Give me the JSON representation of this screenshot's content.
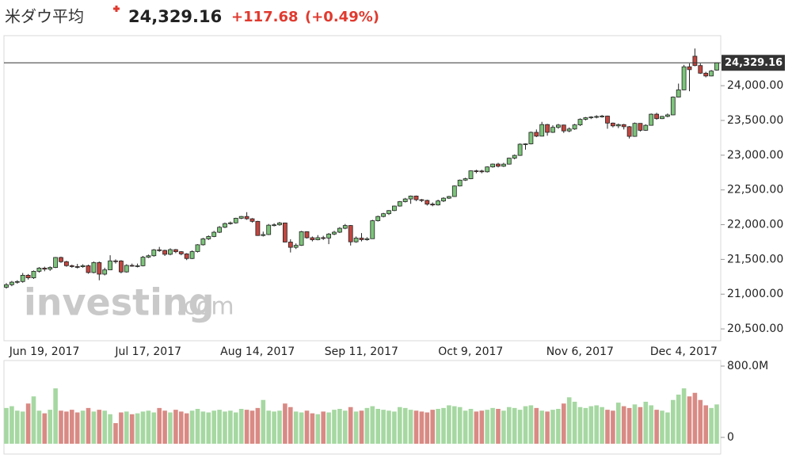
{
  "header": {
    "title": "米ダウ平均",
    "price": "24,329.16",
    "change": "+117.68",
    "change_pct": "(+0.49%)"
  },
  "chart_data": [
    {
      "type": "candlestick",
      "categories": [
        null,
        null,
        null,
        null,
        null,
        null,
        null,
        null,
        null,
        "Jun 19, 2017",
        null,
        null,
        null,
        null,
        null,
        null,
        null,
        null,
        null,
        null,
        null,
        null,
        null,
        null,
        null,
        null,
        null,
        null,
        "Jul 17, 2017",
        null,
        null,
        null,
        null,
        null,
        null,
        null,
        null,
        null,
        null,
        null,
        null,
        null,
        null,
        null,
        null,
        null,
        null,
        null,
        "Aug 14, 2017",
        null,
        null,
        null,
        null,
        null,
        null,
        null,
        null,
        null,
        null,
        null,
        null,
        null,
        null,
        null,
        null,
        null,
        null,
        "Sep 11, 2017",
        null,
        null,
        null,
        null,
        null,
        null,
        null,
        null,
        null,
        null,
        null,
        null,
        null,
        null,
        null,
        null,
        null,
        null,
        null,
        "Oct 9, 2017",
        null,
        null,
        null,
        null,
        null,
        null,
        null,
        null,
        null,
        null,
        null,
        null,
        null,
        null,
        null,
        null,
        null,
        null,
        null,
        "Nov 6, 2017",
        null,
        null,
        null,
        null,
        null,
        null,
        null,
        null,
        null,
        null,
        null,
        null,
        null,
        null,
        null,
        null,
        null,
        null,
        "Dec 4, 2017",
        null,
        null,
        null,
        null
      ],
      "open": [
        21100,
        21136,
        21173,
        21182,
        21272,
        21235,
        21329,
        21375,
        21360,
        21384,
        21528,
        21467,
        21410,
        21397,
        21395,
        21410,
        21311,
        21455,
        21288,
        21350,
        21479,
        21478,
        21320,
        21414,
        21409,
        21409,
        21532,
        21553,
        21638,
        21630,
        21574,
        21641,
        21611,
        21580,
        21513,
        21613,
        21711,
        21796,
        21830,
        21891,
        21963,
        22016,
        22026,
        22092,
        22118,
        22085,
        22048,
        21844,
        21858,
        21993,
        21998,
        22025,
        21750,
        21674,
        21703,
        21899,
        21812,
        21783,
        21813,
        21808,
        21865,
        21892,
        21948,
        21988,
        21753,
        21807,
        21784,
        21798,
        22057,
        22118,
        22158,
        22203,
        22268,
        22331,
        22370,
        22412,
        22359,
        22349,
        22296,
        22284,
        22341,
        22381,
        22405,
        22557,
        22641,
        22661,
        22775,
        22773,
        22761,
        22831,
        22872,
        22841,
        22871,
        22957,
        22997,
        23158,
        23163,
        23329,
        23274,
        23441,
        23329,
        23401,
        23434,
        23349,
        23377,
        23436,
        23516,
        23539,
        23549,
        23557,
        23563,
        23462,
        23422,
        23440,
        23410,
        23271,
        23458,
        23358,
        23430,
        23590,
        23526,
        23558,
        23580,
        23836,
        23940,
        24272,
        24424,
        24290,
        24180,
        24140,
        24224
      ],
      "high": [
        21160,
        21190,
        21200,
        21305,
        21290,
        21340,
        21390,
        21395,
        21400,
        21535,
        21540,
        21480,
        21425,
        21435,
        21430,
        21425,
        21470,
        21470,
        21380,
        21560,
        21500,
        21490,
        21430,
        21440,
        21440,
        21550,
        21570,
        21650,
        21680,
        21640,
        21660,
        21650,
        21620,
        21590,
        21630,
        21720,
        21810,
        21845,
        21910,
        21980,
        22030,
        22045,
        22100,
        22125,
        22180,
        22095,
        22055,
        21900,
        22010,
        22020,
        22040,
        22030,
        21790,
        21730,
        21910,
        21905,
        21830,
        21850,
        21840,
        21880,
        21910,
        21965,
        22010,
        21995,
        21830,
        21880,
        21820,
        22070,
        22130,
        22170,
        22210,
        22275,
        22340,
        22385,
        22420,
        22420,
        22370,
        22360,
        22320,
        22360,
        22395,
        22415,
        22565,
        22650,
        22675,
        22780,
        22790,
        22790,
        22840,
        22880,
        22890,
        22890,
        22965,
        23010,
        23170,
        23170,
        23340,
        23370,
        23480,
        23450,
        23430,
        23450,
        23440,
        23400,
        23450,
        23530,
        23550,
        23560,
        23575,
        23580,
        23570,
        23470,
        23455,
        23450,
        23420,
        23470,
        23460,
        23445,
        23600,
        23610,
        23565,
        23600,
        23845,
        24030,
        24300,
        24320,
        24535,
        24320,
        24200,
        24225,
        24330
      ],
      "low": [
        21080,
        21115,
        21150,
        21165,
        21210,
        21220,
        21310,
        21330,
        21335,
        21375,
        21450,
        21395,
        21380,
        21370,
        21380,
        21295,
        21300,
        21200,
        21270,
        21345,
        21440,
        21300,
        21310,
        21395,
        21385,
        21400,
        21520,
        21540,
        21610,
        21550,
        21560,
        21590,
        21560,
        21490,
        21505,
        21600,
        21700,
        21780,
        21820,
        21880,
        21950,
        22000,
        22015,
        22080,
        22070,
        22030,
        21840,
        21830,
        21850,
        21975,
        21985,
        21745,
        21600,
        21650,
        21695,
        21800,
        21760,
        21775,
        21780,
        21720,
        21850,
        21880,
        21935,
        21700,
        21740,
        21760,
        21770,
        21795,
        22045,
        22105,
        22140,
        22195,
        22260,
        22320,
        22300,
        22340,
        22325,
        22275,
        22265,
        22275,
        22325,
        22370,
        22400,
        22550,
        22630,
        22655,
        22740,
        22740,
        22750,
        22820,
        22825,
        22830,
        22865,
        22940,
        22990,
        23080,
        23155,
        23260,
        23270,
        23280,
        23320,
        23380,
        23320,
        23330,
        23365,
        23420,
        23500,
        23520,
        23530,
        23540,
        23380,
        23400,
        23390,
        23370,
        23240,
        23265,
        23340,
        23350,
        23425,
        23510,
        23520,
        23545,
        23575,
        23830,
        23935,
        23920,
        24280,
        24170,
        24120,
        24135,
        24215
      ],
      "close": [
        21136,
        21173,
        21182,
        21272,
        21235,
        21329,
        21375,
        21360,
        21384,
        21528,
        21467,
        21410,
        21397,
        21395,
        21410,
        21311,
        21455,
        21288,
        21350,
        21479,
        21478,
        21320,
        21414,
        21409,
        21409,
        21532,
        21553,
        21638,
        21630,
        21574,
        21641,
        21611,
        21580,
        21513,
        21613,
        21711,
        21796,
        21830,
        21891,
        21963,
        22016,
        22026,
        22092,
        22118,
        22085,
        22048,
        21844,
        21858,
        21993,
        21998,
        22025,
        21750,
        21674,
        21703,
        21899,
        21812,
        21783,
        21813,
        21808,
        21865,
        21892,
        21948,
        21988,
        21753,
        21807,
        21784,
        21798,
        22057,
        22118,
        22158,
        22203,
        22268,
        22331,
        22370,
        22412,
        22359,
        22349,
        22296,
        22284,
        22341,
        22381,
        22405,
        22557,
        22641,
        22661,
        22775,
        22773,
        22761,
        22831,
        22872,
        22841,
        22871,
        22957,
        22997,
        23158,
        23163,
        23329,
        23274,
        23441,
        23329,
        23401,
        23434,
        23349,
        23377,
        23436,
        23516,
        23539,
        23549,
        23557,
        23563,
        23462,
        23422,
        23440,
        23410,
        23271,
        23458,
        23358,
        23430,
        23590,
        23526,
        23558,
        23580,
        23836,
        23940,
        24272,
        24231,
        24290,
        24180,
        24140,
        24211,
        24329
      ],
      "up_color": "#7cc47a",
      "down_color": "#c2463f",
      "ylim": [
        20330,
        24720
      ],
      "yticks": [
        {
          "value": 20500,
          "label": "20,500.00"
        },
        {
          "value": 21000,
          "label": "21,000.00"
        },
        {
          "value": 21500,
          "label": "21,500.00"
        },
        {
          "value": 22000,
          "label": "22,000.00"
        },
        {
          "value": 22500,
          "label": "22,500.00"
        },
        {
          "value": 23000,
          "label": "23,000.00"
        },
        {
          "value": 23500,
          "label": "23,500.00"
        },
        {
          "value": 24000,
          "label": "24,000.00"
        }
      ],
      "last_price": {
        "value": 24329.16,
        "label": "24,329.16"
      },
      "watermark": {
        "brand": "investing",
        "suffix": ".com"
      }
    },
    {
      "type": "volume",
      "values": [
        330,
        350,
        300,
        290,
        380,
        460,
        300,
        270,
        310,
        550,
        300,
        290,
        310,
        280,
        300,
        330,
        290,
        310,
        300,
        260,
        160,
        280,
        290,
        260,
        270,
        290,
        300,
        280,
        330,
        300,
        280,
        310,
        290,
        270,
        300,
        320,
        290,
        280,
        300,
        310,
        290,
        300,
        280,
        320,
        310,
        300,
        330,
        420,
        300,
        290,
        300,
        380,
        340,
        290,
        280,
        300,
        270,
        260,
        290,
        280,
        310,
        320,
        300,
        340,
        290,
        300,
        330,
        350,
        320,
        310,
        300,
        290,
        340,
        330,
        310,
        300,
        290,
        280,
        310,
        320,
        330,
        360,
        350,
        340,
        300,
        320,
        290,
        300,
        310,
        330,
        320,
        300,
        340,
        330,
        310,
        350,
        360,
        330,
        300,
        290,
        310,
        320,
        380,
        450,
        400,
        340,
        330,
        350,
        360,
        340,
        310,
        300,
        390,
        350,
        330,
        370,
        340,
        400,
        360,
        310,
        300,
        280,
        420,
        480,
        550,
        460,
        500,
        420,
        360,
        330,
        370
      ],
      "up_color": "#a6d8a2",
      "down_color": "#d98a84",
      "ylim": [
        0,
        800
      ],
      "yticks": [
        {
          "value": 800,
          "label": "800.0M"
        },
        0
      ]
    }
  ]
}
